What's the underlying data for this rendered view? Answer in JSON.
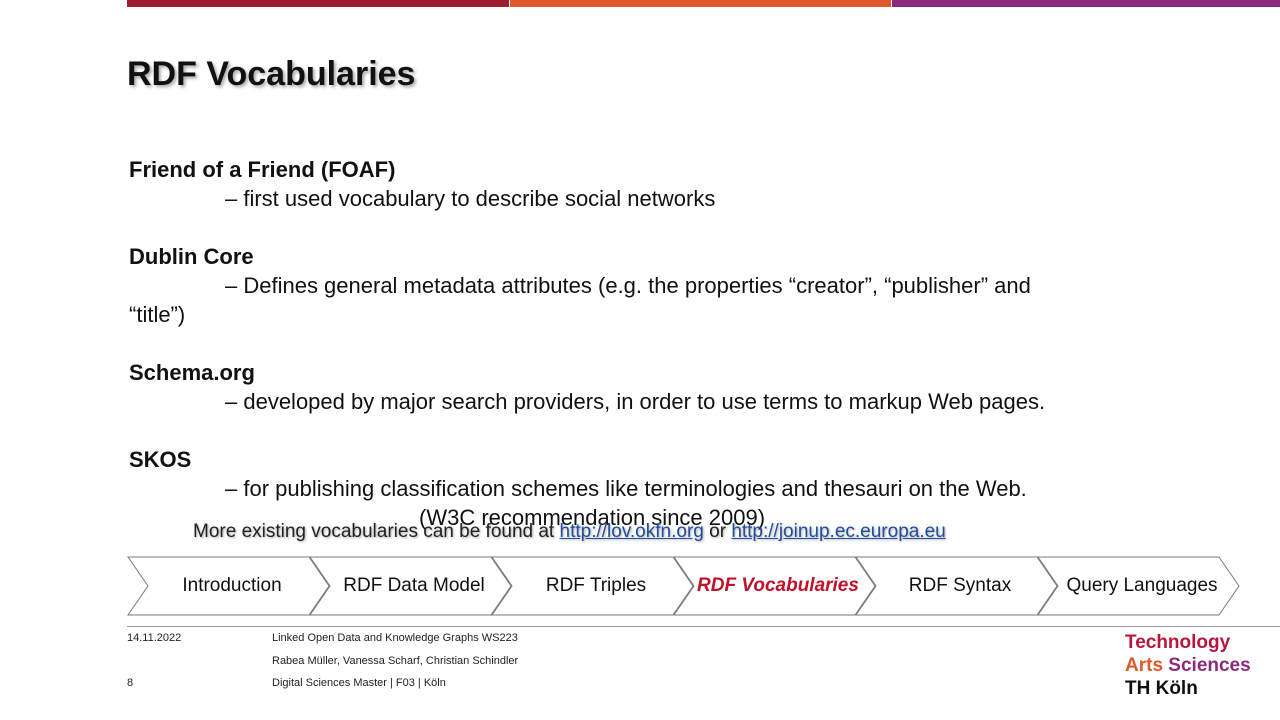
{
  "slide": {
    "title": "RDF Vocabularies",
    "bar_colors": [
      "#9e1b32",
      "#e0582c",
      "#8b2a7d"
    ]
  },
  "vocabularies": [
    {
      "name": "Friend of a Friend (FOAF)",
      "desc": "– first used vocabulary to describe social networks"
    },
    {
      "name": "Dublin Core",
      "desc": "– Defines general metadata attributes (e.g. the properties “creator”, “publisher” and",
      "desc_cont": "“title”)"
    },
    {
      "name": "Schema.org",
      "desc": "– developed by major search providers, in order to use terms to markup Web pages."
    },
    {
      "name": "SKOS",
      "desc": "– for publishing classification schemes like terminologies and thesauri on the Web.",
      "desc_cont": "(W3C recommendation since 2009)"
    }
  ],
  "more": {
    "prefix": "More existing vocabularies can be found at",
    "link1": "http://lov.okfn.org",
    "or": "or",
    "link2": "http://joinup.ec.europa.eu"
  },
  "nav": {
    "steps": [
      "Introduction",
      "RDF Data Model",
      "RDF Triples",
      "RDF Vocabularies",
      "RDF Syntax",
      "Query Languages"
    ],
    "active": "RDF Vocabularies",
    "active_color": "#c0122a"
  },
  "footer": {
    "date": "14.11.2022",
    "page": "8",
    "course": "Linked Open Data and Knowledge Graphs WS223",
    "authors": "Rabea Müller, Vanessa Scharf, Christian Schindler",
    "dept": "Digital Sciences Master | F03 | Köln"
  },
  "logo": {
    "line1": "Technology",
    "line2a": "Arts",
    "line2b": "Sciences",
    "line3": "TH Köln"
  }
}
